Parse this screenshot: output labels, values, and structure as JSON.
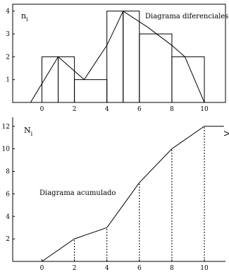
{
  "chart_data": [
    {
      "type": "bar",
      "title": "Diagrama diferenciales",
      "ylabel": "n",
      "ylabel_sub": "i",
      "xlabel": "",
      "x_ticks": [
        0,
        2,
        4,
        6,
        8,
        10
      ],
      "y_ticks": [
        1,
        2,
        3,
        4
      ],
      "xlim": [
        -1.8,
        11.3
      ],
      "ylim": [
        0,
        4.3
      ],
      "bins": [
        {
          "from": 0,
          "to": 1,
          "value": 2
        },
        {
          "from": 1,
          "to": 2,
          "value": 2
        },
        {
          "from": 2,
          "to": 4,
          "value": 1
        },
        {
          "from": 4,
          "to": 5,
          "value": 4
        },
        {
          "from": 5,
          "to": 6,
          "value": 4
        },
        {
          "from": 6,
          "to": 8,
          "value": 3
        },
        {
          "from": 8,
          "to": 10,
          "value": 2
        }
      ],
      "polygon": {
        "x": [
          -0.7,
          1.0,
          2.6,
          4.0,
          5.0,
          6.5,
          8.0,
          8.8,
          10.0
        ],
        "y": [
          0,
          2,
          1,
          2.5,
          4,
          3.3,
          2.5,
          2,
          0
        ]
      }
    },
    {
      "type": "line",
      "title": "Diagrama acumulado",
      "ylabel": "N",
      "ylabel_sub": "i",
      "xlabel": "",
      "x_ticks": [
        0,
        2,
        4,
        6,
        8,
        10
      ],
      "y_ticks": [
        2,
        4,
        6,
        8,
        10,
        12
      ],
      "xlim": [
        -1.8,
        11.3
      ],
      "ylim": [
        0,
        12.8
      ],
      "x": [
        0,
        2,
        4,
        6,
        8,
        10,
        11.2
      ],
      "y": [
        0,
        2,
        3,
        7,
        10,
        12,
        12
      ],
      "dashed_x": [
        2,
        4,
        6,
        8,
        10
      ]
    }
  ]
}
